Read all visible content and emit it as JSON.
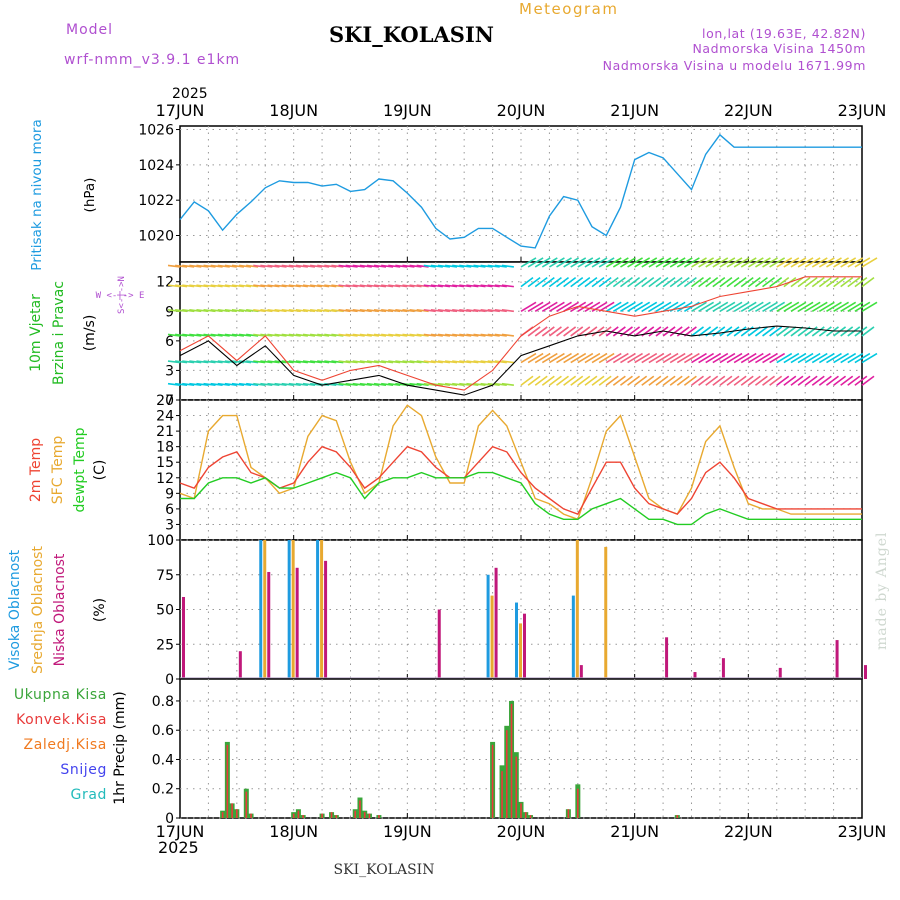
{
  "header": {
    "title": "SKI_KOLASIN",
    "subtitle": "Meteogram",
    "model_label": "Model",
    "model_name": "wrf-nmm_v3.9.1 e1km",
    "coords": "lon,lat (19.63E, 42.82N)",
    "elevation": "Nadmorska Visina 1450m",
    "model_elevation": "Nadmorska Visina u modelu 1671.99m",
    "footer_title": "SKI_KOLASIN",
    "watermark": "made by Angel",
    "year_top": "2025",
    "year_bottom": "2025"
  },
  "colors": {
    "pressure": "#1e9be0",
    "wind_title": "#22bb22",
    "temp2m": "#ee4433",
    "sfc": "#e8a930",
    "dewpt": "#22cc22",
    "cloud_high": "#1e9be0",
    "cloud_mid": "#e8a930",
    "cloud_low": "#c0187a",
    "precip_total": "#3aa53a",
    "precip_conv": "#e83a3a",
    "precip_frz": "#f07a20",
    "snow": "#4444ee",
    "hail": "#22bbbb",
    "legend_purple": "#b050d0"
  },
  "chart_data": [
    {
      "id": "pressure",
      "type": "line",
      "ylabel_name": "Pritisak na nivou mora",
      "ylabel_unit": "(hPa)",
      "ylim": [
        1018.5,
        1026.2
      ],
      "yticks": [
        1020,
        1022,
        1024,
        1026
      ],
      "x": [
        0,
        3,
        6,
        9,
        12,
        15,
        18,
        21,
        24,
        27,
        30,
        33,
        36,
        39,
        42,
        45,
        48,
        51,
        54,
        57,
        60,
        63,
        66,
        69,
        72,
        75,
        78,
        81,
        84,
        87,
        90,
        93,
        96,
        99,
        102,
        105,
        108,
        111,
        114,
        117,
        120,
        123,
        126,
        129,
        132,
        135,
        138,
        141,
        144
      ],
      "series": [
        {
          "values": [
            1020.9,
            1021.9,
            1021.4,
            1020.3,
            1021.2,
            1021.9,
            1022.7,
            1023.1,
            1023.0,
            1023.0,
            1022.8,
            1022.9,
            1022.5,
            1022.6,
            1023.2,
            1023.1,
            1022.4,
            1021.6,
            1020.4,
            1019.8,
            1019.9,
            1020.4,
            1020.4,
            1019.9,
            1019.4,
            1019.3,
            1021.1,
            1022.2,
            1022.0,
            1020.5,
            1020.0,
            1021.6,
            1024.3,
            1024.7,
            1024.4,
            1023.5,
            1022.6,
            1024.6,
            1025.7,
            1025.0,
            1025.0,
            1025.0,
            1025.0,
            1025.0,
            1025.0,
            1025.0,
            1025.0,
            1025.0,
            1025.0
          ]
        }
      ]
    },
    {
      "id": "wind",
      "type": "line",
      "ylabel_name": "10m Vjetar",
      "ylabel_name2": "Brzina i Pravac",
      "ylabel_unit": "(m/s)",
      "compass": [
        "N",
        "E",
        "S",
        "W"
      ],
      "ylim": [
        0,
        14
      ],
      "yticks": [
        0,
        3,
        6,
        9,
        12
      ],
      "x": [
        0,
        6,
        12,
        18,
        24,
        30,
        36,
        42,
        48,
        54,
        60,
        66,
        72,
        78,
        84,
        90,
        96,
        102,
        108,
        114,
        120,
        126,
        132,
        138,
        144
      ],
      "series": [
        {
          "values": [
            4.5,
            6.0,
            3.5,
            5.5,
            2.5,
            1.5,
            2.0,
            2.5,
            1.5,
            1.0,
            0.5,
            1.5,
            4.5,
            5.5,
            6.5,
            7.0,
            6.5,
            7.0,
            6.5,
            6.8,
            7.2,
            7.5,
            7.3,
            7.0,
            7.0
          ]
        },
        {
          "values": [
            5.0,
            6.5,
            4.0,
            6.5,
            3.0,
            2.0,
            3.0,
            3.5,
            2.5,
            1.5,
            1.0,
            3.0,
            6.5,
            8.5,
            9.5,
            9.0,
            8.5,
            9.0,
            9.5,
            10.5,
            11.0,
            11.5,
            12.5,
            12.5,
            12.5
          ]
        }
      ]
    },
    {
      "id": "temperature",
      "type": "line",
      "ylabel_names": [
        "2m Temp",
        "SFC Temp",
        "dewpt Temp"
      ],
      "ylabel_unit": "(C)",
      "ylim": [
        0,
        27
      ],
      "yticks": [
        0,
        3,
        6,
        9,
        12,
        15,
        18,
        21,
        24,
        27
      ],
      "x": [
        0,
        3,
        6,
        9,
        12,
        15,
        18,
        21,
        24,
        27,
        30,
        33,
        36,
        39,
        42,
        45,
        48,
        51,
        54,
        57,
        60,
        63,
        66,
        69,
        72,
        75,
        78,
        81,
        84,
        87,
        90,
        93,
        96,
        99,
        102,
        105,
        108,
        111,
        114,
        117,
        120,
        123,
        126,
        129,
        132,
        135,
        138,
        141,
        144
      ],
      "series": [
        {
          "name": "2m Temp",
          "values": [
            11,
            10,
            14,
            16,
            17,
            13,
            12,
            10,
            11,
            15,
            18,
            17,
            14,
            10,
            12,
            15,
            18,
            17,
            14,
            12,
            12,
            15,
            18,
            17,
            13,
            10,
            8,
            6,
            5,
            10,
            15,
            15,
            10,
            7,
            6,
            5,
            8,
            13,
            15,
            12,
            8,
            7,
            6,
            6,
            6,
            6,
            6,
            6,
            6
          ]
        },
        {
          "name": "SFC Temp",
          "values": [
            9,
            8,
            21,
            24,
            24,
            14,
            12,
            9,
            10,
            20,
            24,
            23,
            15,
            9,
            11,
            22,
            26,
            24,
            16,
            11,
            11,
            22,
            25,
            22,
            15,
            8,
            7,
            5,
            4,
            12,
            21,
            24,
            16,
            8,
            6,
            5,
            10,
            19,
            22,
            14,
            7,
            6,
            6,
            5,
            5,
            5,
            5,
            5,
            5
          ]
        },
        {
          "name": "dewpt Temp",
          "values": [
            8,
            8,
            11,
            12,
            12,
            11,
            12,
            10,
            10,
            11,
            12,
            13,
            12,
            8,
            11,
            12,
            12,
            13,
            12,
            12,
            12,
            13,
            13,
            12,
            11,
            7,
            5,
            4,
            4,
            6,
            7,
            8,
            6,
            4,
            4,
            3,
            3,
            5,
            6,
            5,
            4,
            4,
            4,
            4,
            4,
            4,
            4,
            4,
            4
          ]
        }
      ]
    },
    {
      "id": "cloud",
      "type": "bar",
      "ylabel_names": [
        "Visoka Oblacnost",
        "Srednja Oblacnost",
        "Niska Oblacnost"
      ],
      "ylabel_unit": "(%)",
      "ylim": [
        0,
        100
      ],
      "yticks": [
        0,
        25,
        50,
        75,
        100
      ],
      "x": [
        0,
        6,
        12,
        18,
        24,
        30,
        36,
        42,
        48,
        54,
        60,
        66,
        72,
        78,
        84,
        90,
        96,
        102,
        108,
        114,
        120,
        126,
        132,
        138,
        144
      ],
      "series": [
        {
          "name": "Visoka Oblacnost",
          "values": [
            0,
            0,
            0,
            100,
            100,
            100,
            0,
            0,
            0,
            0,
            0,
            75,
            55,
            0,
            60,
            0,
            0,
            0,
            0,
            0,
            0,
            0,
            0,
            0,
            0
          ]
        },
        {
          "name": "Srednja Oblacnost",
          "values": [
            0,
            0,
            0,
            100,
            100,
            100,
            0,
            0,
            0,
            0,
            0,
            60,
            40,
            0,
            100,
            95,
            0,
            0,
            0,
            0,
            0,
            0,
            0,
            0,
            0
          ]
        },
        {
          "name": "Niska Oblacnost",
          "values": [
            59,
            0,
            20,
            77,
            80,
            85,
            0,
            0,
            0,
            50,
            0,
            80,
            47,
            0,
            10,
            0,
            0,
            30,
            5,
            15,
            0,
            8,
            0,
            28,
            10
          ]
        }
      ]
    },
    {
      "id": "precip",
      "type": "bar",
      "ylabel_names": [
        "Ukupna Kisa",
        "Konvek.Kisa",
        "Zaledj.Kisa",
        "Snijeg",
        "Grad"
      ],
      "ylabel_unit": "1hr Precip (mm)",
      "ylim": [
        0,
        0.95
      ],
      "yticks": [
        0,
        0.2,
        0.4,
        0.6,
        0.8
      ],
      "ytick_labels": [
        "0",
        "0.2",
        "0.4",
        "0.6",
        "0.8"
      ],
      "x": [
        9,
        10,
        11,
        12,
        14,
        15,
        24,
        25,
        26,
        30,
        32,
        33,
        37,
        38,
        39,
        40,
        42,
        66,
        68,
        69,
        70,
        71,
        72,
        73,
        74,
        82,
        84,
        105
      ],
      "series": [
        {
          "name": "Ukupna Kisa",
          "values": [
            0.05,
            0.52,
            0.1,
            0.06,
            0.2,
            0.03,
            0.04,
            0.06,
            0.02,
            0.03,
            0.04,
            0.02,
            0.06,
            0.14,
            0.05,
            0.03,
            0.02,
            0.52,
            0.36,
            0.63,
            0.8,
            0.45,
            0.11,
            0.04,
            0.02,
            0.06,
            0.23,
            0.02
          ]
        },
        {
          "name": "Konvek.Kisa",
          "values": [
            0.04,
            0.5,
            0.1,
            0.06,
            0.18,
            0.03,
            0.03,
            0.05,
            0.02,
            0.03,
            0.04,
            0.02,
            0.05,
            0.12,
            0.04,
            0.03,
            0.02,
            0.5,
            0.32,
            0.6,
            0.78,
            0.42,
            0.1,
            0.04,
            0.02,
            0.06,
            0.2,
            0.02
          ]
        }
      ]
    }
  ],
  "time_axis": {
    "labels": [
      "17JUN",
      "18JUN",
      "19JUN",
      "20JUN",
      "21JUN",
      "22JUN",
      "23JUN"
    ],
    "range_hours": [
      0,
      144
    ]
  }
}
